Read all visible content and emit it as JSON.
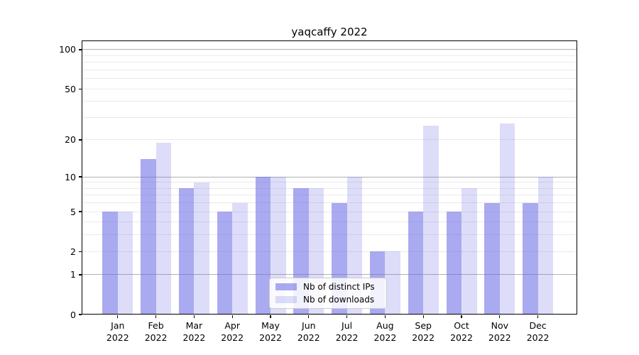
{
  "chart_data": {
    "type": "bar",
    "title": "yaqcaffy 2022",
    "categories": [
      "Jan",
      "Feb",
      "Mar",
      "Apr",
      "May",
      "Jun",
      "Jul",
      "Aug",
      "Sep",
      "Oct",
      "Nov",
      "Dec"
    ],
    "year": "2022",
    "series": [
      {
        "name": "Nb of distinct IPs",
        "values": [
          5,
          14,
          8,
          5,
          10,
          8,
          6,
          2,
          5,
          5,
          6,
          6
        ]
      },
      {
        "name": "Nb of downloads",
        "values": [
          5,
          19,
          9,
          6,
          10,
          8,
          10,
          2,
          26,
          8,
          27,
          10
        ]
      }
    ],
    "y_axis": {
      "scale": "log10(1+v)",
      "max_value": 117.6,
      "tick_labels": [
        100,
        50,
        20,
        10,
        5,
        2,
        1,
        0
      ],
      "strong_gridlines": [
        100,
        10,
        1
      ],
      "faint_gridlines": [
        90,
        80,
        70,
        60,
        50,
        40,
        30,
        20,
        9,
        8,
        7,
        6,
        5,
        4,
        3,
        2
      ]
    },
    "legend": {
      "position": "lower center",
      "entries": [
        "Nb of distinct IPs",
        "Nb of downloads"
      ]
    },
    "grid": true
  },
  "colors": {
    "bar_ips": "rgba(100,100,228,0.55)",
    "bar_downloads": "rgba(100,100,228,0.22)",
    "grid_strong": "#b1b1b1",
    "grid_faint": "#eaeaea",
    "frame": "#000000",
    "text": "#000000",
    "legend_border": "#cccccc",
    "legend_bg": "rgba(255,255,255,0.85)"
  }
}
